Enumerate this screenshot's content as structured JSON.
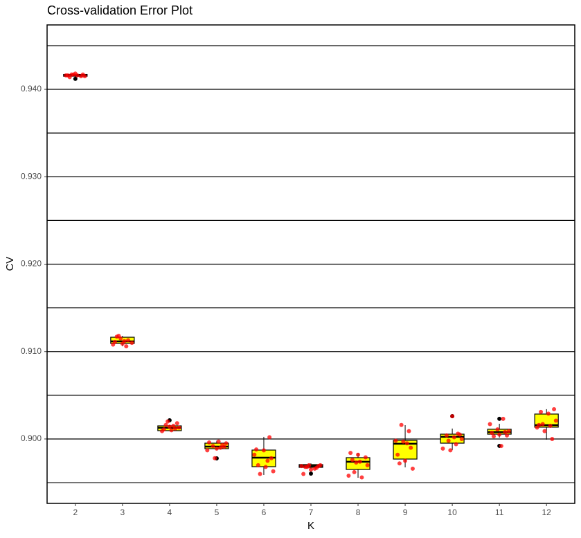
{
  "chart_data": {
    "type": "box",
    "title": "Cross-validation Error Plot",
    "x_label": "K",
    "y_label": "CV",
    "categories": [
      "2",
      "3",
      "4",
      "5",
      "6",
      "7",
      "8",
      "9",
      "10",
      "11",
      "12"
    ],
    "box_color": "#ffff00",
    "point_color": "#ff0000",
    "outlier_color": "#000000",
    "boxes": [
      {
        "min": 0.9414,
        "q1": 0.9415,
        "median": 0.9416,
        "q3": 0.9417,
        "max": 0.9418,
        "outliers": [
          0.9412
        ]
      },
      {
        "min": 0.9106,
        "q1": 0.91093,
        "median": 0.91117,
        "q3": 0.91164,
        "max": 0.9118,
        "outliers": []
      },
      {
        "min": 0.9009,
        "q1": 0.90095,
        "median": 0.90127,
        "q3": 0.9015,
        "max": 0.9016,
        "outliers": [
          0.90214
        ]
      },
      {
        "min": 0.8988,
        "q1": 0.89889,
        "median": 0.89913,
        "q3": 0.89952,
        "max": 0.8998,
        "outliers": [
          0.89778
        ]
      },
      {
        "min": 0.89588,
        "q1": 0.89683,
        "median": 0.89786,
        "q3": 0.89873,
        "max": 0.90024,
        "outliers": []
      },
      {
        "min": 0.8966,
        "q1": 0.89675,
        "median": 0.89691,
        "q3": 0.89707,
        "max": 0.8972,
        "outliers": [
          0.89604
        ]
      },
      {
        "min": 0.89556,
        "q1": 0.89651,
        "median": 0.89739,
        "q3": 0.89786,
        "max": 0.8984,
        "outliers": []
      },
      {
        "min": 0.89675,
        "q1": 0.8977,
        "median": 0.89945,
        "q3": 0.89984,
        "max": 0.90158,
        "outliers": []
      },
      {
        "min": 0.89873,
        "q1": 0.89952,
        "median": 0.90024,
        "q3": 0.90055,
        "max": 0.90119,
        "outliers": [
          0.90261
        ]
      },
      {
        "min": 0.90016,
        "q1": 0.90055,
        "median": 0.90079,
        "q3": 0.90111,
        "max": 0.90174,
        "outliers": [
          0.9023,
          0.89921
        ]
      },
      {
        "min": 0.89992,
        "q1": 0.90135,
        "median": 0.90158,
        "q3": 0.90285,
        "max": 0.90341,
        "outliers": []
      }
    ],
    "points": [
      [
        0.9416,
        0.9417,
        0.9415,
        0.9416,
        0.9418,
        0.9417,
        0.9414,
        0.9416,
        0.9415,
        0.9417
      ],
      [
        0.9117,
        0.9112,
        0.911,
        0.9118,
        0.9106,
        0.9108,
        0.9115,
        0.9113,
        0.9111,
        0.9109
      ],
      [
        0.902,
        0.9012,
        0.9009,
        0.9014,
        0.9018,
        0.9011,
        0.901,
        0.9013,
        0.9016,
        0.9015
      ],
      [
        0.8997,
        0.8995,
        0.8992,
        0.899,
        0.8987,
        0.8978,
        0.8993,
        0.8996,
        0.8989,
        0.8991
      ],
      [
        0.9002,
        0.8988,
        0.8987,
        0.8978,
        0.897,
        0.8968,
        0.8963,
        0.896,
        0.8975,
        0.8982
      ],
      [
        0.897,
        0.8968,
        0.8966,
        0.8969,
        0.897,
        0.8967,
        0.896,
        0.8965,
        0.8969,
        0.8968
      ],
      [
        0.8984,
        0.8982,
        0.8979,
        0.8976,
        0.8974,
        0.897,
        0.8962,
        0.8956,
        0.8958,
        0.8973
      ],
      [
        0.9016,
        0.9009,
        0.8998,
        0.8997,
        0.899,
        0.8982,
        0.8975,
        0.8966,
        0.8972,
        0.8995
      ],
      [
        0.9026,
        0.9005,
        0.9004,
        0.9002,
        0.9,
        0.8998,
        0.8994,
        0.8989,
        0.8987,
        0.9006
      ],
      [
        0.9023,
        0.9017,
        0.9011,
        0.9008,
        0.9007,
        0.9005,
        0.9004,
        0.9003,
        0.8992,
        0.9009
      ],
      [
        0.9034,
        0.9031,
        0.9029,
        0.9021,
        0.9017,
        0.9015,
        0.9013,
        0.9009,
        0.9,
        0.9016
      ]
    ],
    "ylim": [
      0.89263,
      0.94737
    ],
    "yticks": [
      {
        "value": 0.9,
        "label": "0.900"
      },
      {
        "value": 0.91,
        "label": "0.910"
      },
      {
        "value": 0.92,
        "label": "0.920"
      },
      {
        "value": 0.93,
        "label": "0.930"
      },
      {
        "value": 0.94,
        "label": "0.940"
      }
    ],
    "minor_yticks": [
      0.895,
      0.905,
      0.915,
      0.925,
      0.935,
      0.945
    ],
    "grid": true
  }
}
